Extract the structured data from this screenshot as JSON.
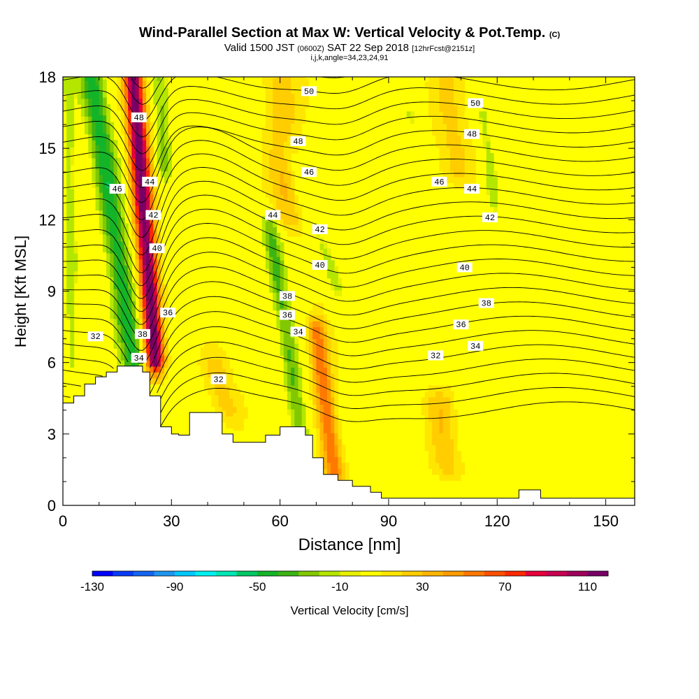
{
  "title": {
    "main": "Wind-Parallel Section at Max W: Vertical Velocity & Pot.Temp.",
    "tag": "(C)",
    "valid_a": "Valid 1500 JST",
    "valid_zulu": "(0600Z)",
    "valid_b": "SAT 22 Sep 2018",
    "forecast": "[12hrFcst@2151z]",
    "ijk": "i,j,k,angle=34,23,24,91"
  },
  "chart_data": {
    "type": "heatmap",
    "xlabel": "Distance [nm]",
    "ylabel": "Height [Kft MSL]",
    "xlim": [
      0,
      158
    ],
    "ylim": [
      0,
      18
    ],
    "xticks": [
      0,
      30,
      60,
      90,
      120,
      150
    ],
    "yticks": [
      0,
      3,
      6,
      9,
      12,
      15,
      18
    ],
    "colorbar": {
      "label": "Vertical Velocity [cm/s]",
      "min": -130,
      "max": 120,
      "step": 10,
      "tick_labels": [
        "-130",
        "-90",
        "-50",
        "-10",
        "30",
        "70",
        "110"
      ],
      "tick_values": [
        -130,
        -90,
        -50,
        -10,
        30,
        70,
        110
      ],
      "colors": [
        "#0000ff",
        "#0a3cf5",
        "#1464f0",
        "#1e96f0",
        "#00c8ff",
        "#00f0f0",
        "#00e6b4",
        "#00c864",
        "#14b428",
        "#3cb414",
        "#82c800",
        "#b4e600",
        "#e6f000",
        "#ffff00",
        "#ffe600",
        "#ffcd00",
        "#ffb400",
        "#ff9b00",
        "#ff7800",
        "#ff5000",
        "#ff2800",
        "#e6003c",
        "#c80050",
        "#a0005a",
        "#780064"
      ]
    },
    "terrain": {
      "x": [
        0,
        3,
        3,
        6,
        6,
        9,
        9,
        12,
        12,
        15,
        15,
        22,
        22,
        24,
        24,
        27,
        27,
        30,
        30,
        32,
        32,
        35,
        35,
        44,
        44,
        47,
        47,
        56,
        56,
        58,
        58,
        60,
        60,
        67,
        67,
        69,
        69,
        72,
        72,
        76,
        76,
        80,
        80,
        85,
        85,
        88,
        88,
        126,
        126,
        132,
        132,
        158
      ],
      "height": [
        4.3,
        4.3,
        4.6,
        4.6,
        5.1,
        5.1,
        5.4,
        5.4,
        5.6,
        5.6,
        5.85,
        5.85,
        5.6,
        5.6,
        4.6,
        4.6,
        3.3,
        3.3,
        3.0,
        3.0,
        2.95,
        2.95,
        3.9,
        3.9,
        3.0,
        3.0,
        2.65,
        2.65,
        2.95,
        2.95,
        2.95,
        2.95,
        3.3,
        3.3,
        2.95,
        2.95,
        2.0,
        2.0,
        1.3,
        1.3,
        1.05,
        1.05,
        0.8,
        0.8,
        0.55,
        0.55,
        0.3,
        0.3,
        0.65,
        0.65,
        0.3,
        0.3
      ]
    },
    "velocity_features": [
      {
        "kind": "updraft",
        "x0": 25.5,
        "x1": 19.5,
        "z0": 6.0,
        "z1": 18.0,
        "width": 2.6,
        "peak": 115
      },
      {
        "kind": "downdraft",
        "x0": 19.5,
        "x1": 8.0,
        "z0": 6.0,
        "z1": 18.0,
        "width": 3.4,
        "peak": -50
      },
      {
        "kind": "downdraft",
        "x0": 28.0,
        "x1": 27.0,
        "z0": 14.0,
        "z1": 18.0,
        "width": 2.2,
        "peak": -25
      },
      {
        "kind": "downdraft",
        "x0": 66.0,
        "x1": 57.0,
        "z0": 2.8,
        "z1": 12.0,
        "width": 2.4,
        "peak": -35
      },
      {
        "kind": "downdraft",
        "x0": 76.0,
        "x1": 62.0,
        "z0": 9.0,
        "z1": 15.0,
        "width": 2.4,
        "peak": -15
      },
      {
        "kind": "updraft",
        "x0": 75.0,
        "x1": 70.0,
        "z0": 1.3,
        "z1": 7.5,
        "width": 2.6,
        "peak": 55
      },
      {
        "kind": "updraft",
        "x0": 62.0,
        "x1": 60.0,
        "z0": 12.0,
        "z1": 18.0,
        "width": 4.5,
        "peak": 25
      },
      {
        "kind": "updraft",
        "x0": 45.0,
        "x1": 42.0,
        "z0": 4.0,
        "z1": 6.0,
        "width": 4.0,
        "peak": 20
      },
      {
        "kind": "updraft",
        "x0": 106.0,
        "x1": 104.0,
        "z0": 1.5,
        "z1": 4.5,
        "width": 4.0,
        "peak": 22
      },
      {
        "kind": "updraft",
        "x0": 108.0,
        "x1": 107.0,
        "z0": 14.0,
        "z1": 18.0,
        "width": 5.0,
        "peak": 18
      },
      {
        "kind": "downdraft",
        "x0": 100.0,
        "x1": 96.0,
        "z0": 13.5,
        "z1": 16.5,
        "width": 2.6,
        "peak": -12
      },
      {
        "kind": "downdraft",
        "x0": 119.0,
        "x1": 116.0,
        "z0": 12.5,
        "z1": 16.5,
        "width": 2.4,
        "peak": -15
      },
      {
        "kind": "downdraft",
        "x0": 112.0,
        "x1": 111.0,
        "z0": 6.5,
        "z1": 7.5,
        "width": 2.4,
        "peak": -12
      },
      {
        "kind": "downdraft",
        "x0": 2.5,
        "x1": 1.5,
        "z0": 6.0,
        "z1": 18.0,
        "width": 1.6,
        "peak": -20
      }
    ],
    "theta_contours": [
      {
        "value": 32,
        "label_positions": [
          [
            9,
            7.1
          ],
          [
            43,
            5.3
          ],
          [
            103,
            6.3
          ]
        ]
      },
      {
        "value": 34,
        "label_positions": [
          [
            21,
            6.2
          ],
          [
            65,
            7.3
          ],
          [
            114,
            6.7
          ]
        ]
      },
      {
        "value": 36,
        "label_positions": [
          [
            29,
            8.1
          ],
          [
            62,
            8.0
          ],
          [
            110,
            7.6
          ]
        ]
      },
      {
        "value": 38,
        "label_positions": [
          [
            22,
            7.2
          ],
          [
            62,
            8.8
          ],
          [
            117,
            8.5
          ]
        ]
      },
      {
        "value": 40,
        "label_positions": [
          [
            26,
            10.8
          ],
          [
            71,
            10.1
          ],
          [
            111,
            10.0
          ]
        ]
      },
      {
        "value": 42,
        "label_positions": [
          [
            25,
            12.2
          ],
          [
            71,
            11.6
          ],
          [
            118,
            12.1
          ]
        ]
      },
      {
        "value": 44,
        "label_positions": [
          [
            24,
            13.6
          ],
          [
            58,
            12.2
          ],
          [
            113,
            13.3
          ]
        ]
      },
      {
        "value": 46,
        "label_positions": [
          [
            15,
            13.3
          ],
          [
            68,
            14.0
          ],
          [
            104,
            13.6
          ]
        ]
      },
      {
        "value": 48,
        "label_positions": [
          [
            21,
            16.3
          ],
          [
            65,
            15.3
          ],
          [
            113,
            15.6
          ]
        ]
      },
      {
        "value": 50,
        "label_positions": [
          [
            68,
            17.4
          ],
          [
            114,
            16.9
          ]
        ]
      }
    ]
  }
}
